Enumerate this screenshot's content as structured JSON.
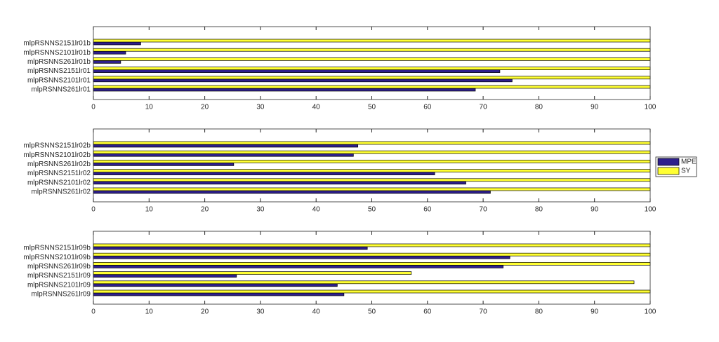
{
  "chart_data": [
    {
      "type": "barh",
      "categories": [
        "mlpRSNNS2151lr01b",
        "mlpRSNNS2101lr01b",
        "mlpRSNNS261lr01b",
        "mlpRSNNS2151lr01",
        "mlpRSNNS2101lr01",
        "mlpRSNNS261lr01"
      ],
      "series": [
        {
          "color": "#2e1f8c",
          "values": [
            8.5,
            5.8,
            4.9,
            73,
            75.2,
            68.6
          ]
        },
        {
          "color": "#ffff33",
          "values": [
            100,
            100,
            100,
            100,
            100,
            100
          ]
        }
      ],
      "xlim": [
        0,
        100
      ],
      "xticks": [
        0,
        10,
        20,
        30,
        40,
        50,
        60,
        70,
        80,
        90,
        100
      ]
    },
    {
      "type": "barh",
      "categories": [
        "mlpRSNNS2151lr02b",
        "mlpRSNNS2101lr02b",
        "mlpRSNNS261lr02b",
        "mlpRSNNS2151lr02",
        "mlpRSNNS2101lr02",
        "mlpRSNNS261lr02"
      ],
      "series": [
        {
          "name": "MPE",
          "color": "#2e1f8c",
          "values": [
            47.5,
            46.7,
            25.2,
            61.3,
            66.9,
            71.3
          ]
        },
        {
          "name": "SY",
          "color": "#ffff33",
          "values": [
            100,
            100,
            100,
            100,
            100,
            100
          ]
        }
      ],
      "xlim": [
        0,
        100
      ],
      "xticks": [
        0,
        10,
        20,
        30,
        40,
        50,
        60,
        70,
        80,
        90,
        100
      ],
      "legend": "outside-right"
    },
    {
      "type": "barh",
      "categories": [
        "mlpRSNNS2151lr09b",
        "mlpRSNNS2101lr09b",
        "mlpRSNNS261lr09b",
        "mlpRSNNS2151lr09",
        "mlpRSNNS2101lr09",
        "mlpRSNNS261lr09"
      ],
      "series": [
        {
          "color": "#2e1f8c",
          "values": [
            49.2,
            74.8,
            73.6,
            25.7,
            43.8,
            45
          ]
        },
        {
          "color": "#ffff33",
          "values": [
            100,
            100,
            100,
            57.1,
            97.1,
            100
          ]
        }
      ],
      "xlim": [
        0,
        100
      ],
      "xticks": [
        0,
        10,
        20,
        30,
        40,
        50,
        60,
        70,
        80,
        90,
        100
      ]
    }
  ]
}
